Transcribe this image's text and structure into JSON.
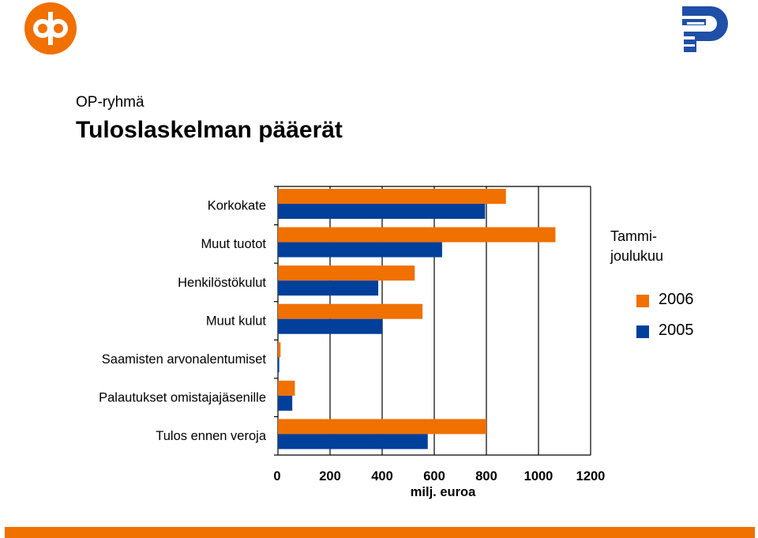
{
  "header": {
    "subtitle": "OP-ryhmä",
    "title": "Tuloslaskelman pääerät"
  },
  "legend": {
    "title_line1": "Tammi-",
    "title_line2": "joulukuu",
    "items": [
      {
        "label": "2006",
        "color": "#f07000"
      },
      {
        "label": "2005",
        "color": "#003f9a"
      }
    ]
  },
  "colors": {
    "accent": "#f07000",
    "brand_blue": "#003f9a"
  },
  "chart_data": {
    "type": "bar",
    "orientation": "horizontal",
    "categories": [
      "Korkokate",
      "Muut tuotot",
      "Henkilöstökulut",
      "Muut kulut",
      "Saamisten arvonalentumiset",
      "Palautukset omistajajäsenille",
      "Tulos ennen veroja"
    ],
    "series": [
      {
        "name": "2006",
        "color": "#f07000",
        "values": [
          875,
          1065,
          525,
          555,
          10,
          65,
          800
        ]
      },
      {
        "name": "2005",
        "color": "#003f9a",
        "values": [
          795,
          630,
          385,
          400,
          5,
          55,
          575
        ]
      }
    ],
    "xlabel": "milj. euroa",
    "xlim": [
      0,
      1200
    ],
    "xticks": [
      0,
      200,
      400,
      600,
      800,
      1000,
      1200
    ],
    "grid": "vertical",
    "legend_position": "right"
  }
}
